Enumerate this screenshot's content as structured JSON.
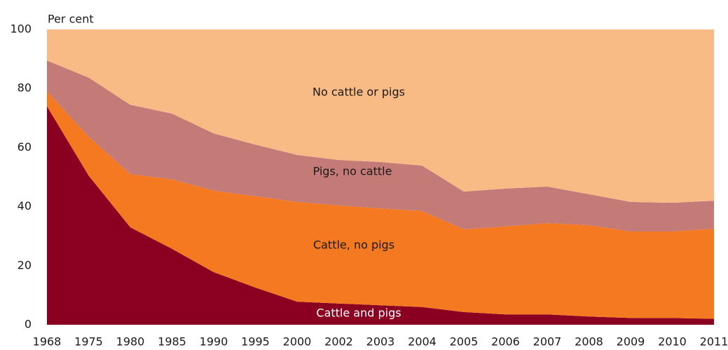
{
  "chart_data": {
    "type": "stacked_area",
    "y_label": "Per cent",
    "categories": [
      "1968",
      "1975",
      "1980",
      "1985",
      "1990",
      "1995",
      "2000",
      "2002",
      "2003",
      "2004",
      "2005",
      "2006",
      "2007",
      "2008",
      "2009",
      "2010",
      "2011"
    ],
    "series": [
      {
        "name": "Cattle and pigs",
        "color": "#8b0020",
        "values": [
          74,
          50.5,
          33,
          25.7,
          17.8,
          12.6,
          7.8,
          7.2,
          6.6,
          6,
          4.3,
          3.5,
          3.5,
          2.8,
          2.3,
          2.3,
          2
        ]
      },
      {
        "name": "Cattle, no pigs",
        "color": "#f47920",
        "values": [
          5,
          13.2,
          18,
          23.5,
          27.6,
          30.9,
          33.8,
          33.2,
          32.8,
          32.5,
          28,
          29.8,
          30.9,
          30.9,
          29.3,
          29.3,
          30.5
        ]
      },
      {
        "name": "Pigs, no cattle",
        "color": "#c47a76",
        "values": [
          10.5,
          20,
          23.5,
          22.3,
          19.4,
          17.5,
          15.9,
          15.4,
          15.7,
          15.4,
          12.8,
          12.8,
          12.4,
          10.5,
          10,
          9.7,
          9.5
        ]
      },
      {
        "name": "No cattle or pigs",
        "color": "#f9bb85",
        "values": [
          10.5,
          16.3,
          25.5,
          28.5,
          35.2,
          39,
          42.5,
          44.2,
          44.9,
          46.1,
          54.9,
          53.9,
          53.2,
          55.8,
          58.4,
          58.7,
          58
        ]
      }
    ],
    "ylim": [
      0,
      100
    ],
    "yticks": [
      0,
      20,
      40,
      60,
      80,
      100
    ],
    "grid": false
  }
}
